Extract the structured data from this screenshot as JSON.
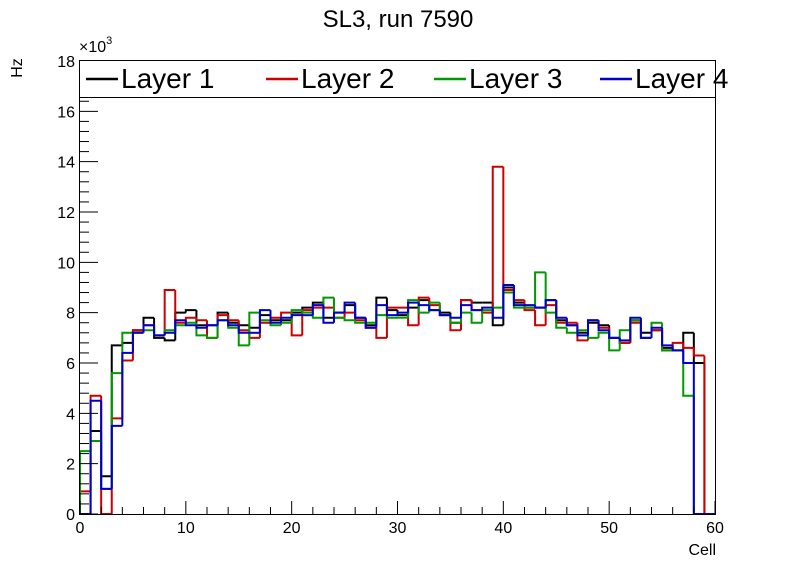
{
  "chart_data": {
    "type": "line",
    "title": "SL3, run 7590",
    "xlabel": "Cell",
    "ylabel": "Hz",
    "y_multiplier": "×10",
    "y_multiplier_exp": "3",
    "xlim": [
      0,
      60
    ],
    "ylim": [
      0,
      18
    ],
    "x_ticks": [
      "0",
      "10",
      "20",
      "30",
      "40",
      "50",
      "60"
    ],
    "y_ticks": [
      "0",
      "2",
      "4",
      "6",
      "8",
      "10",
      "12",
      "14",
      "16",
      "18"
    ],
    "legend_position": "top",
    "bin_width": 1,
    "series": [
      {
        "name": "Layer 1",
        "color": "#000000",
        "values": [
          0.0,
          3.3,
          1.5,
          6.7,
          6.8,
          7.3,
          7.8,
          7.0,
          6.9,
          8.0,
          8.1,
          7.5,
          7.5,
          8.0,
          7.6,
          7.5,
          7.4,
          7.9,
          7.7,
          7.7,
          8.0,
          8.2,
          8.4,
          7.8,
          8.0,
          8.3,
          7.8,
          7.5,
          8.6,
          8.1,
          7.9,
          8.2,
          8.5,
          8.1,
          8.0,
          7.6,
          8.5,
          8.4,
          8.4,
          7.5,
          9.0,
          8.4,
          8.2,
          8.2,
          8.5,
          7.7,
          7.5,
          7.2,
          7.6,
          7.5,
          7.0,
          6.8,
          7.7,
          7.2,
          7.3,
          6.6,
          6.5,
          7.2,
          6.0,
          0.0
        ]
      },
      {
        "name": "Layer 2",
        "color": "#cc0000",
        "values": [
          0.9,
          4.7,
          0.0,
          3.8,
          6.1,
          7.3,
          7.5,
          7.1,
          8.9,
          7.6,
          7.8,
          7.7,
          7.0,
          7.9,
          7.7,
          7.3,
          7.0,
          7.6,
          7.8,
          8.0,
          7.1,
          8.1,
          8.2,
          8.2,
          7.8,
          8.0,
          7.7,
          7.4,
          7.0,
          8.2,
          8.2,
          7.5,
          8.6,
          8.3,
          7.9,
          7.3,
          8.5,
          8.1,
          8.0,
          13.8,
          8.9,
          8.5,
          8.1,
          7.5,
          8.3,
          7.6,
          7.6,
          6.9,
          7.7,
          7.4,
          7.0,
          6.8,
          7.6,
          7.0,
          7.3,
          6.5,
          6.8,
          6.6,
          6.3,
          0.0
        ]
      },
      {
        "name": "Layer 3",
        "color": "#009900",
        "values": [
          2.5,
          2.9,
          1.0,
          5.6,
          7.2,
          7.2,
          7.3,
          7.1,
          7.3,
          7.5,
          7.6,
          7.1,
          7.0,
          7.7,
          7.4,
          6.7,
          8.0,
          7.7,
          7.5,
          7.6,
          8.1,
          8.0,
          7.8,
          8.6,
          7.8,
          7.7,
          7.6,
          7.6,
          7.9,
          7.8,
          7.8,
          8.5,
          8.0,
          8.4,
          7.9,
          7.6,
          8.0,
          7.6,
          8.1,
          8.2,
          8.8,
          8.2,
          8.2,
          9.6,
          8.0,
          7.4,
          7.2,
          7.3,
          7.0,
          7.2,
          6.5,
          7.3,
          7.7,
          7.0,
          7.6,
          6.5,
          6.5,
          4.7,
          0.0,
          0.0
        ]
      },
      {
        "name": "Layer 4",
        "color": "#0000cc",
        "values": [
          0.0,
          4.5,
          1.0,
          3.5,
          6.4,
          7.2,
          7.5,
          7.1,
          7.2,
          7.7,
          7.5,
          7.4,
          7.5,
          7.7,
          7.5,
          7.2,
          7.2,
          8.1,
          7.6,
          7.8,
          7.9,
          7.9,
          8.3,
          7.6,
          8.0,
          8.4,
          7.8,
          7.4,
          8.3,
          7.9,
          8.0,
          8.4,
          8.3,
          8.1,
          7.9,
          7.8,
          8.3,
          8.1,
          8.2,
          7.8,
          9.1,
          8.3,
          8.3,
          8.2,
          8.5,
          7.8,
          7.5,
          7.1,
          7.7,
          7.3,
          7.0,
          6.9,
          7.8,
          7.0,
          7.4,
          6.7,
          6.5,
          6.0,
          0.0,
          0.0
        ]
      }
    ]
  }
}
